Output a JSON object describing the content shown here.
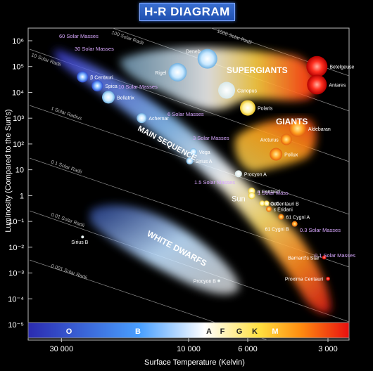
{
  "title": "H-R DIAGRAM",
  "chart_data": {
    "type": "scatter",
    "title": "H-R DIAGRAM",
    "xlabel": "Surface Temperature (Kelvin)",
    "ylabel": "Luminosity (Compared to the Sun's)",
    "x_scale": "log, reversed",
    "y_scale": "log",
    "xlim": [
      40000,
      2500
    ],
    "ylim": [
      1e-05,
      1000000
    ],
    "x_ticks": [
      "30 000",
      "10 000",
      "6 000",
      "3 000"
    ],
    "y_ticks": [
      "10^6",
      "10^5",
      "10^4",
      "10^3",
      "10^2",
      "10",
      "1",
      "10^-1",
      "10^-2",
      "10^-3",
      "10^-4",
      "10^-5"
    ],
    "spectral_classes": [
      "O",
      "B",
      "A",
      "F",
      "G",
      "K",
      "M"
    ],
    "regions": [
      "SUPERGIANTS",
      "GIANTS",
      "MAIN SEQUENCE",
      "WHITE DWARFS"
    ],
    "radius_lines": [
      "1000 Solar Radii",
      "100 Solar Radii",
      "10 Solar Radii",
      "1 Solar Radius",
      "0.1 Solar Radii",
      "0.01 Solar Radii",
      "0.001 Solar Radii"
    ],
    "mass_labels": [
      "60 Solar Masses",
      "30 Solar Masses",
      "10 Solar Masses",
      "6 Solar Masses",
      "3 Solar Masses",
      "1.5 Solar Masses",
      "1 Solar Mass",
      "0.3 Solar Masses",
      "0.1 Solar Masses"
    ],
    "stars": [
      {
        "name": "Deneb",
        "temp": 8500,
        "lum": 200000
      },
      {
        "name": "Rigel",
        "temp": 11000,
        "lum": 60000
      },
      {
        "name": "Betelgeuse",
        "temp": 3300,
        "lum": 100000
      },
      {
        "name": "Antares",
        "temp": 3300,
        "lum": 20000
      },
      {
        "name": "Canopus",
        "temp": 7200,
        "lum": 12000
      },
      {
        "name": "Polaris",
        "temp": 6000,
        "lum": 2500
      },
      {
        "name": "β Centauri",
        "temp": 25000,
        "lum": 40000
      },
      {
        "name": "Spica",
        "temp": 22000,
        "lum": 18000
      },
      {
        "name": "Bellatrix",
        "temp": 20000,
        "lum": 6500
      },
      {
        "name": "Achernar",
        "temp": 15000,
        "lum": 1000
      },
      {
        "name": "Aldebaran",
        "temp": 3900,
        "lum": 400
      },
      {
        "name": "Arcturus",
        "temp": 4300,
        "lum": 150
      },
      {
        "name": "Pollux",
        "temp": 4700,
        "lum": 40
      },
      {
        "name": "Vega",
        "temp": 9600,
        "lum": 50
      },
      {
        "name": "Sirius A",
        "temp": 9900,
        "lum": 22
      },
      {
        "name": "Procyon A",
        "temp": 6500,
        "lum": 7
      },
      {
        "name": "α Centauri",
        "temp": 5800,
        "lum": 1.5
      },
      {
        "name": "Sun",
        "temp": 5800,
        "lum": 1
      },
      {
        "name": "τ Ceti",
        "temp": 5300,
        "lum": 0.5
      },
      {
        "name": "α Centauri B",
        "temp": 5100,
        "lum": 0.5
      },
      {
        "name": "ε Eridani",
        "temp": 5000,
        "lum": 0.3
      },
      {
        "name": "61 Cygni A",
        "temp": 4500,
        "lum": 0.15
      },
      {
        "name": "61 Cygni B",
        "temp": 4000,
        "lum": 0.08
      },
      {
        "name": "Barnard's Star",
        "temp": 3100,
        "lum": 0.004
      },
      {
        "name": "Proxima Centauri",
        "temp": 3000,
        "lum": 0.0006
      },
      {
        "name": "Sirius B",
        "temp": 25000,
        "lum": 0.025
      },
      {
        "name": "Procyon B",
        "temp": 7700,
        "lum": 0.0005
      }
    ]
  }
}
